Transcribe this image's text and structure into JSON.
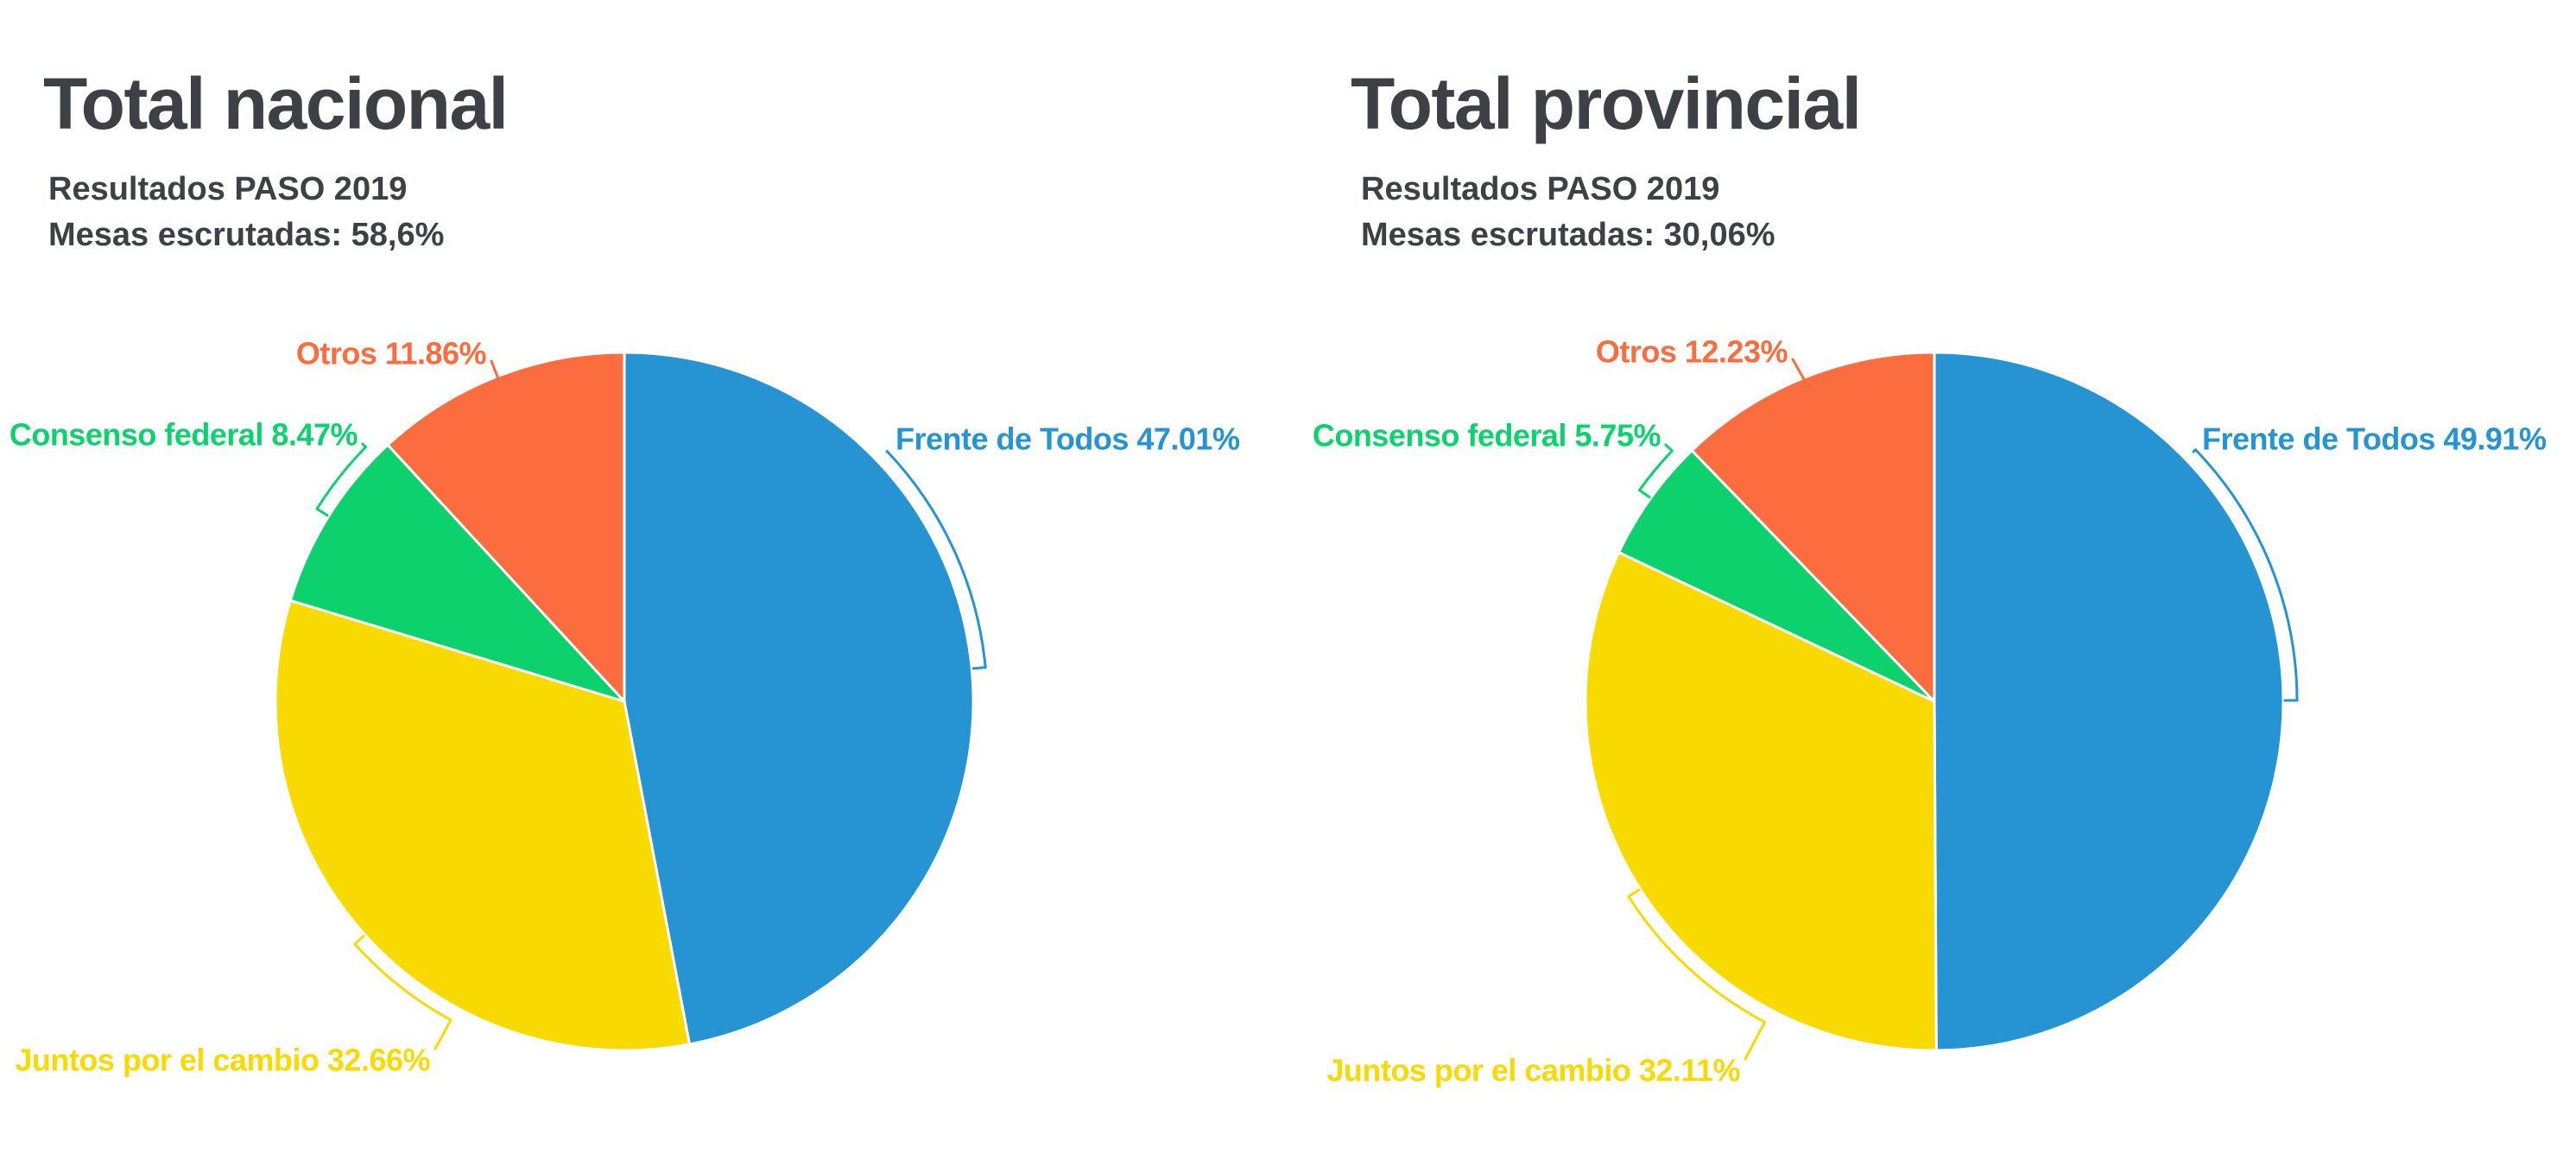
{
  "page": {
    "background": "#FFFFFF",
    "text_color": "#3D4045"
  },
  "chart_data": [
    {
      "type": "pie",
      "title": "Total nacional",
      "subtitle": "Resultados PASO 2019",
      "mesas_label": "Mesas escrutadas: 58,6%",
      "start_angle_deg": 0,
      "direction": "clockwise",
      "labels_position": "outside-with-arc-connectors",
      "legend": false,
      "slices": [
        {
          "name": "Frente de Todos",
          "value_pct": 47.01,
          "label_text": "Frente de Todos 47.01%",
          "color": "#2694D3"
        },
        {
          "name": "Juntos por el cambio",
          "value_pct": 32.66,
          "label_text": "Juntos por el cambio 32.66%",
          "color": "#F8D900"
        },
        {
          "name": "Consenso federal",
          "value_pct": 8.47,
          "label_text": "Consenso federal 8.47%",
          "color": "#0CD16C"
        },
        {
          "name": "Otros",
          "value_pct": 11.86,
          "label_text": "Otros 11.86%",
          "color": "#FB6D3F"
        }
      ]
    },
    {
      "type": "pie",
      "title": "Total provincial",
      "subtitle": "Resultados PASO 2019",
      "mesas_label": "Mesas escrutadas: 30,06%",
      "start_angle_deg": 0,
      "direction": "clockwise",
      "labels_position": "outside-with-arc-connectors",
      "legend": false,
      "slices": [
        {
          "name": "Frente de Todos",
          "value_pct": 49.91,
          "label_text": "Frente de Todos 49.91%",
          "color": "#2694D3"
        },
        {
          "name": "Juntos por el cambio",
          "value_pct": 32.11,
          "label_text": "Juntos por el cambio 32.11%",
          "color": "#F8D900"
        },
        {
          "name": "Consenso federal",
          "value_pct": 5.75,
          "label_text": "Consenso federal 5.75%",
          "color": "#0CD16C"
        },
        {
          "name": "Otros",
          "value_pct": 12.23,
          "label_text": "Otros 12.23%",
          "color": "#FB6D3F"
        }
      ]
    }
  ]
}
